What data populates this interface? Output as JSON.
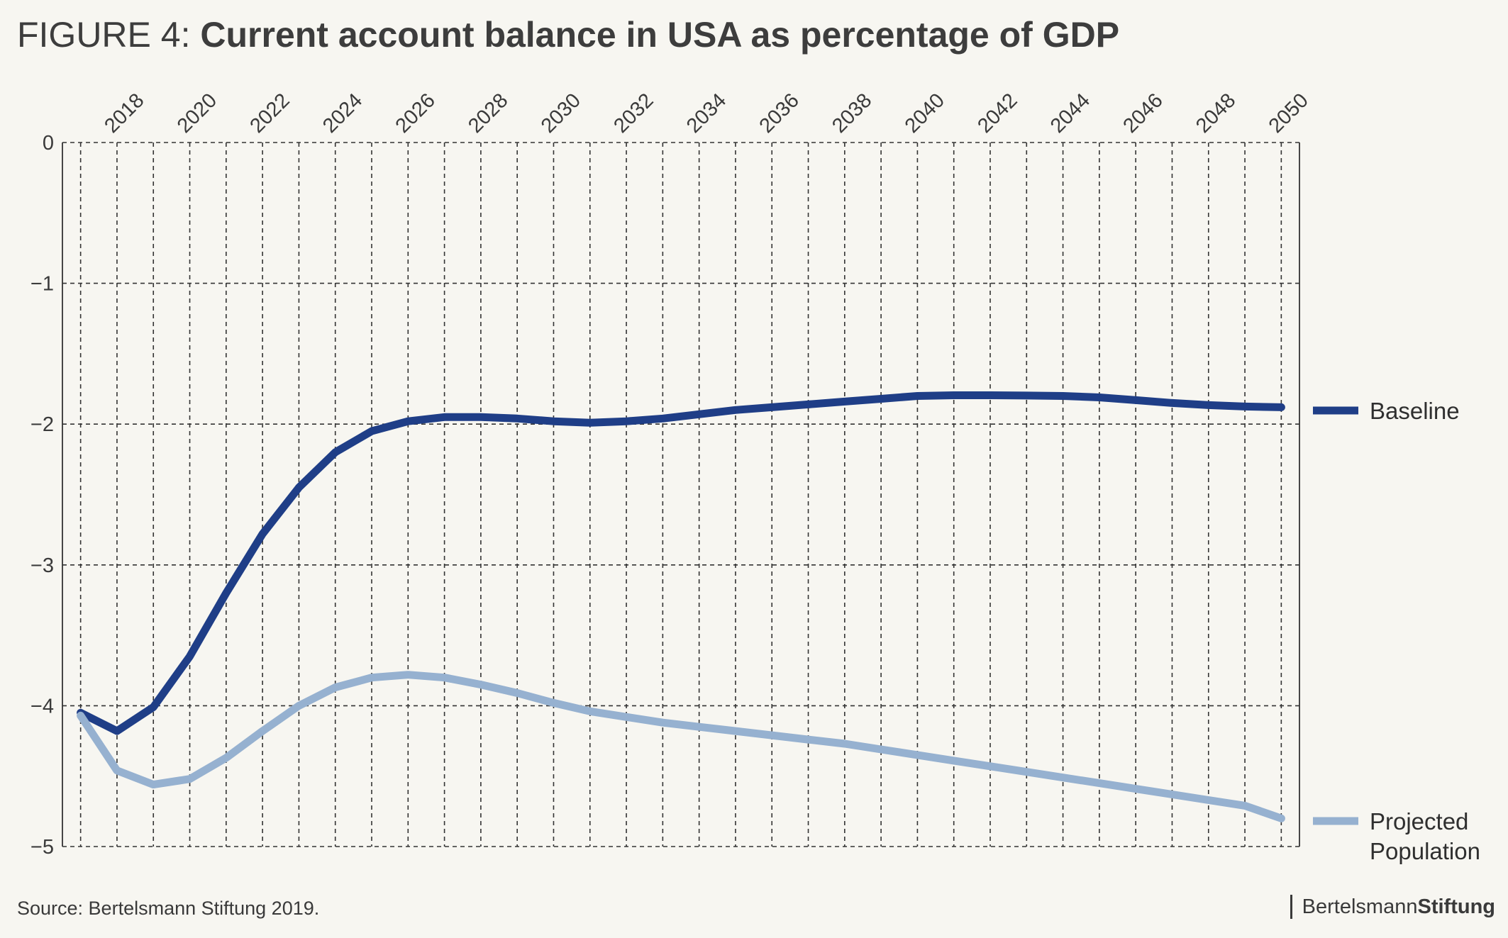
{
  "header": {
    "figure_label": "FIGURE 4:",
    "title": "Current account balance in USA as percentage of GDP"
  },
  "footer": {
    "source": "Source: Bertelsmann Stiftung 2019.",
    "logo_part1": "Bertelsmann",
    "logo_part2": "Stiftung"
  },
  "colors": {
    "baseline": "#1f3e87",
    "projected": "#96b1d0",
    "grid": "#333333",
    "background": "#f7f6f1"
  },
  "chart_data": {
    "type": "line",
    "x": [
      2017,
      2018,
      2019,
      2020,
      2021,
      2022,
      2023,
      2024,
      2025,
      2026,
      2027,
      2028,
      2029,
      2030,
      2031,
      2032,
      2033,
      2034,
      2035,
      2036,
      2037,
      2038,
      2039,
      2040,
      2041,
      2042,
      2043,
      2044,
      2045,
      2046,
      2047,
      2048,
      2049,
      2050
    ],
    "xticks": [
      "2018",
      "2020",
      "2022",
      "2024",
      "2026",
      "2028",
      "2030",
      "2032",
      "2034",
      "2036",
      "2038",
      "2040",
      "2042",
      "2044",
      "2046",
      "2048",
      "2050"
    ],
    "yticks": [
      "0",
      "−1",
      "−2",
      "−3",
      "−4",
      "−5"
    ],
    "xlim": [
      2016.5,
      2050.5
    ],
    "ylim": [
      -5,
      0
    ],
    "grid": true,
    "legend_position": "right, at line ends",
    "series": [
      {
        "name": "Baseline",
        "values": [
          -4.05,
          -4.18,
          -4.01,
          -3.65,
          -3.2,
          -2.78,
          -2.45,
          -2.2,
          -2.05,
          -1.98,
          -1.95,
          -1.95,
          -1.96,
          -1.98,
          -1.99,
          -1.98,
          -1.96,
          -1.93,
          -1.9,
          -1.88,
          -1.86,
          -1.84,
          -1.82,
          -1.8,
          -1.795,
          -1.795,
          -1.797,
          -1.8,
          -1.81,
          -1.83,
          -1.85,
          -1.865,
          -1.875,
          -1.88
        ]
      },
      {
        "name": "Projected Population",
        "values": [
          -4.07,
          -4.46,
          -4.56,
          -4.52,
          -4.37,
          -4.18,
          -4.0,
          -3.87,
          -3.8,
          -3.78,
          -3.8,
          -3.85,
          -3.91,
          -3.98,
          -4.04,
          -4.08,
          -4.12,
          -4.15,
          -4.18,
          -4.21,
          -4.24,
          -4.27,
          -4.31,
          -4.35,
          -4.39,
          -4.43,
          -4.47,
          -4.51,
          -4.55,
          -4.59,
          -4.63,
          -4.67,
          -4.71,
          -4.8
        ]
      }
    ],
    "legend_labels": {
      "baseline": "Baseline",
      "projected_line1": "Projected",
      "projected_line2": "Population"
    }
  }
}
